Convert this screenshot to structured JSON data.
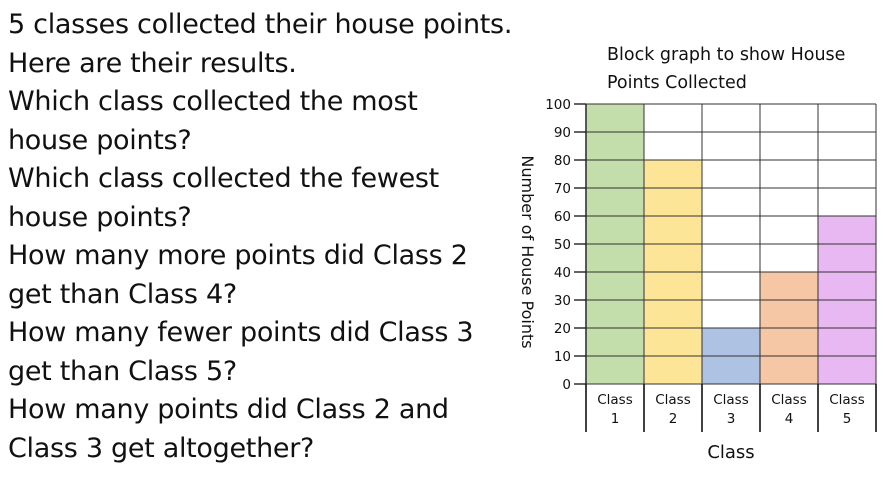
{
  "questions": [
    "5 classes collected their house points.",
    "Here are their results.",
    "Which class collected the most",
    "house points?",
    "Which class collected the fewest",
    "house points?",
    "How many more points did Class 2",
    "get than Class 4?",
    "How many fewer points did Class 3",
    "get than Class 5?",
    "How many points did Class 2 and",
    "Class 3 get altogether?"
  ],
  "chart_data": {
    "type": "bar",
    "title_lines": [
      "Block graph to show House",
      "Points Collected"
    ],
    "ylabel": "Number of House Points",
    "xlabel": "Class",
    "ylim": [
      0,
      100
    ],
    "yticks": [
      0,
      10,
      20,
      30,
      40,
      50,
      60,
      70,
      80,
      90,
      100
    ],
    "grid": true,
    "categories": [
      {
        "line1": "Class",
        "line2": "1"
      },
      {
        "line1": "Class",
        "line2": "2"
      },
      {
        "line1": "Class",
        "line2": "3"
      },
      {
        "line1": "Class",
        "line2": "4"
      },
      {
        "line1": "Class",
        "line2": "5"
      }
    ],
    "values": [
      100,
      80,
      20,
      40,
      60
    ],
    "colors": [
      "#c3deaa",
      "#fde598",
      "#aec2e3",
      "#f6c7a5",
      "#e8b8f3"
    ]
  }
}
